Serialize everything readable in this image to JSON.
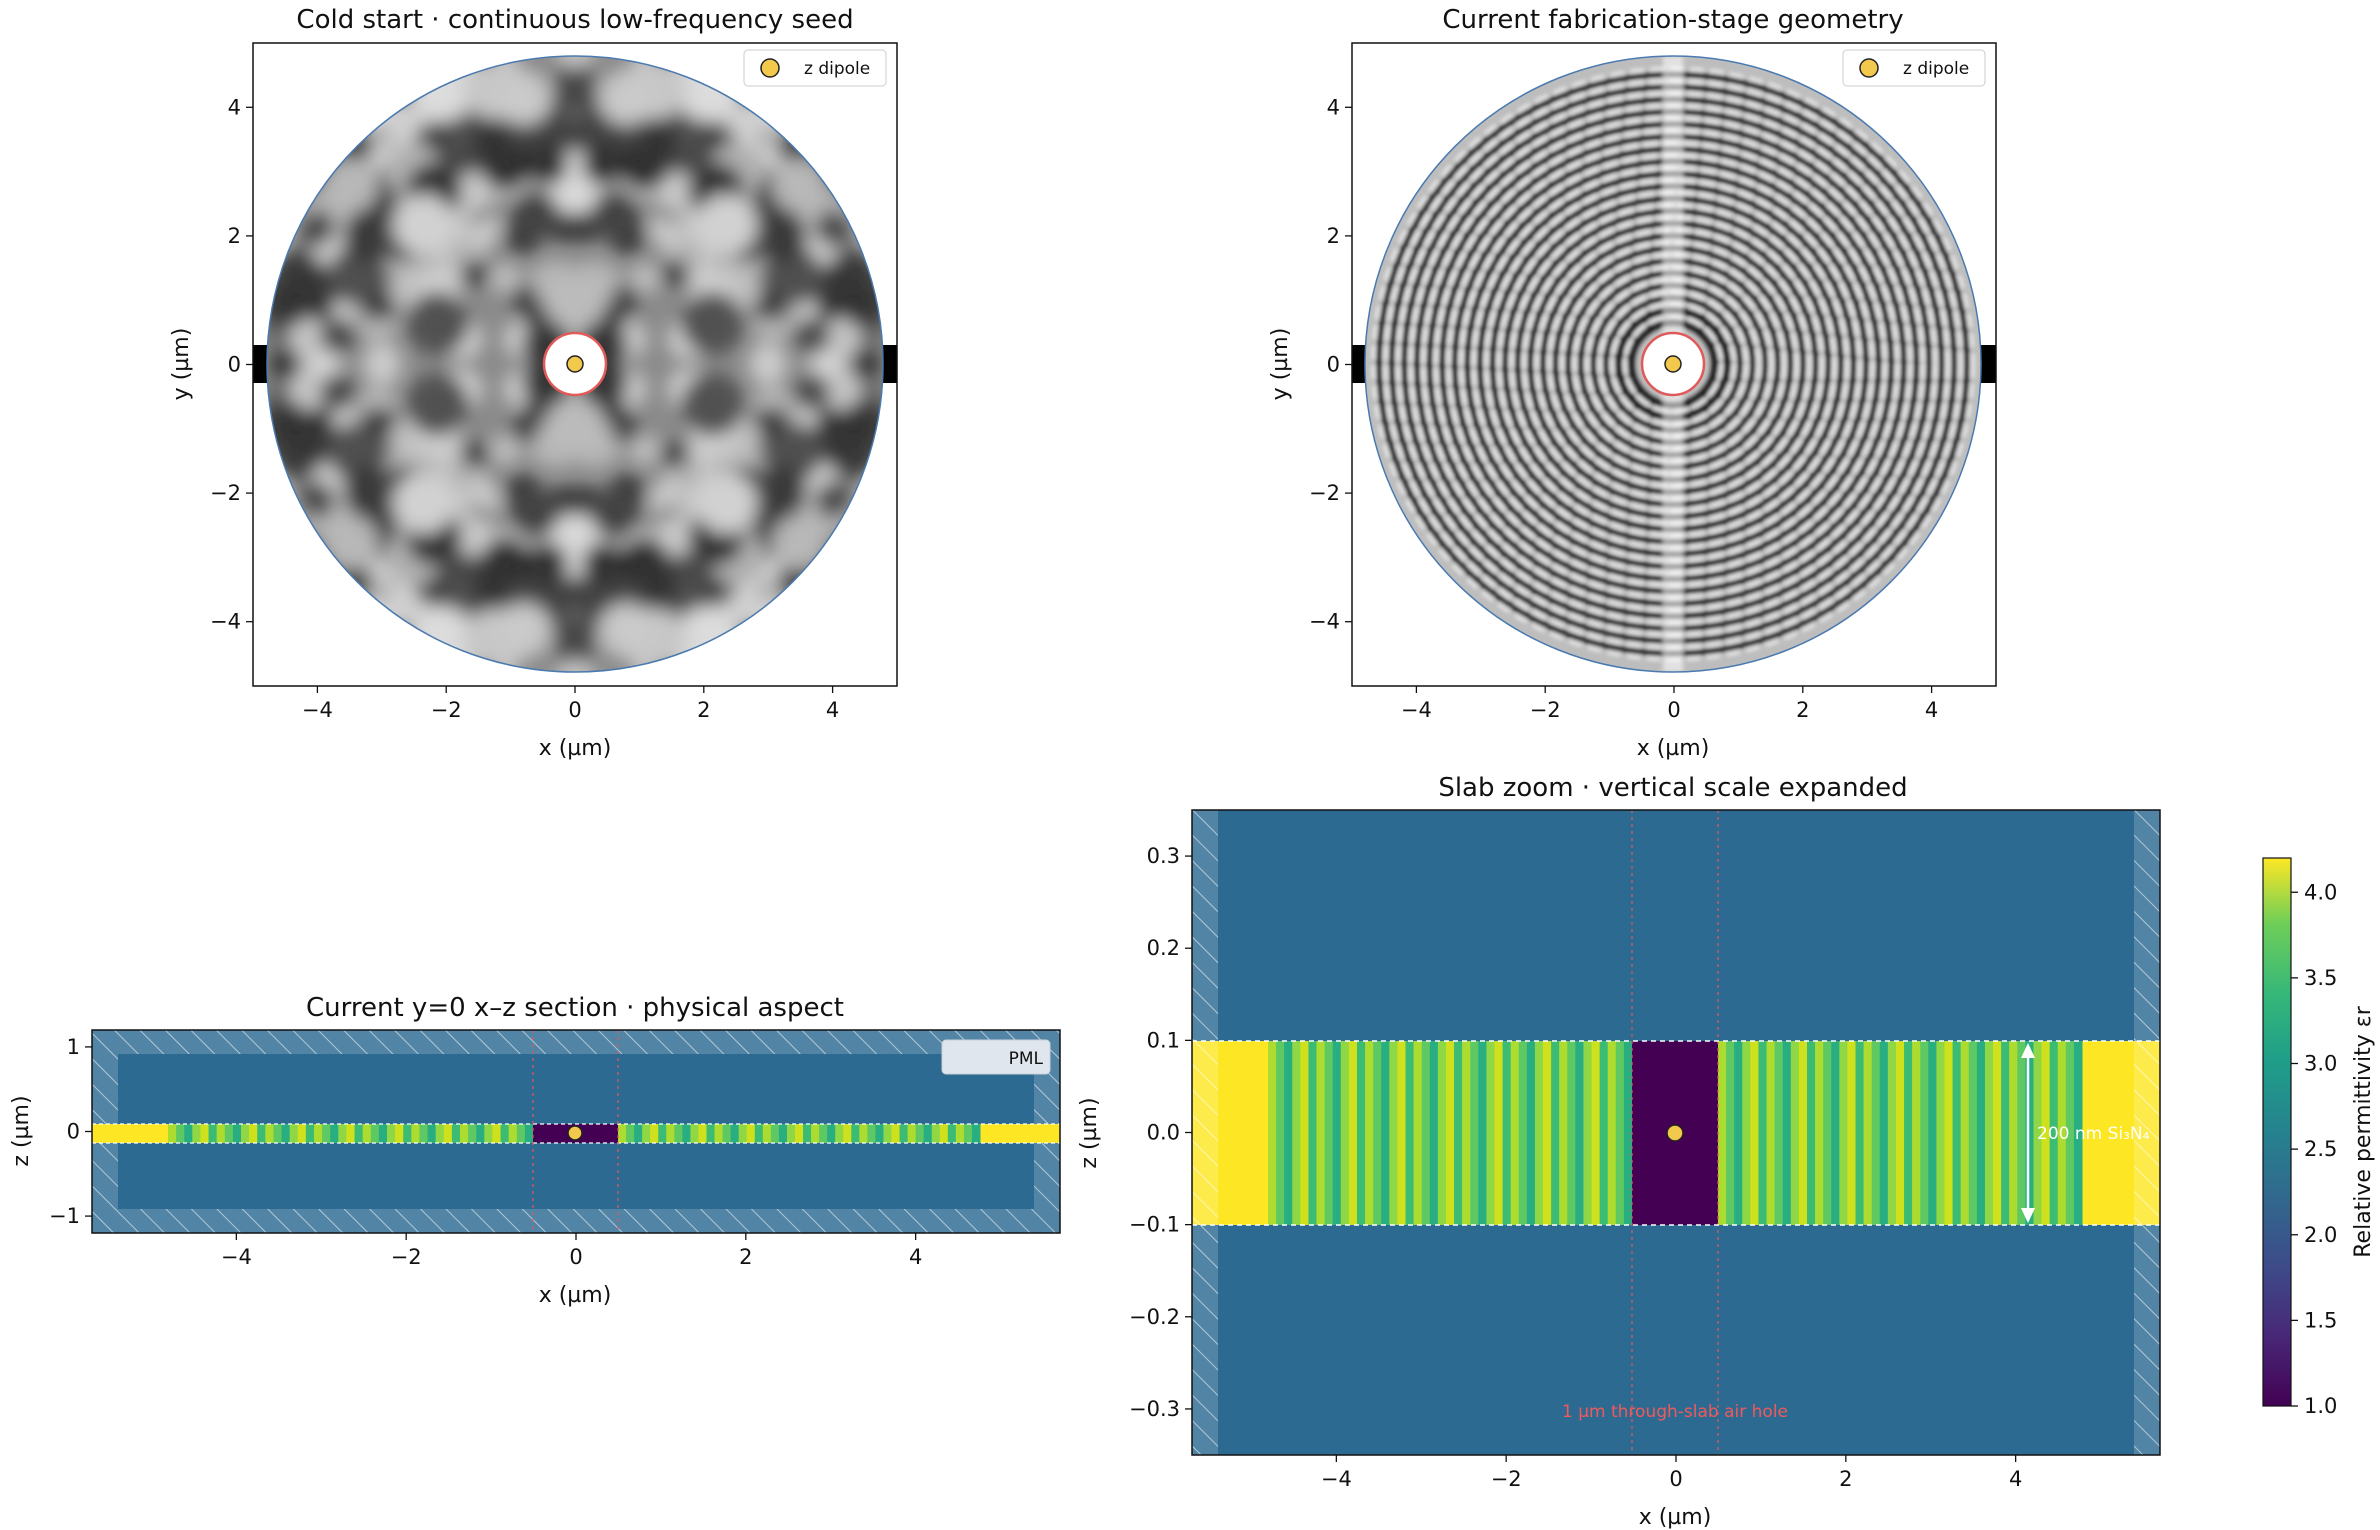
{
  "chart_data": [
    {
      "type": "heatmap",
      "title": "Cold start · continuous low-frequency seed",
      "xlabel": "x (µm)",
      "ylabel": "y (µm)",
      "xlim": [
        -5,
        5
      ],
      "ylim": [
        -5,
        5
      ],
      "xticks": [
        "−4",
        "−2",
        "0",
        "2",
        "4"
      ],
      "yticks": [
        "4",
        "2",
        "0",
        "−2",
        "−4"
      ],
      "legend": {
        "position": "top-right",
        "entries": [
          "z dipole"
        ]
      },
      "disk_radius": 4.8,
      "hole_radius": 0.5,
      "dipole": [
        0,
        0
      ],
      "colors": {
        "dipole": "#f2c94c",
        "hole_ring": "#e05a5a",
        "disk_edge": "#4a7ab0"
      }
    },
    {
      "type": "heatmap",
      "title": "Current fabrication-stage geometry",
      "xlabel": "x (µm)",
      "ylabel": "y (µm)",
      "xlim": [
        -5,
        5
      ],
      "ylim": [
        -5,
        5
      ],
      "xticks": [
        "−4",
        "−2",
        "0",
        "2",
        "4"
      ],
      "yticks": [
        "4",
        "2",
        "0",
        "−2",
        "−4"
      ],
      "legend": {
        "position": "top-right",
        "entries": [
          "z dipole"
        ]
      },
      "disk_radius": 4.8,
      "hole_radius": 0.5,
      "dipole": [
        0,
        0
      ]
    },
    {
      "type": "heatmap",
      "title": "Current y=0 x–z section · physical aspect",
      "xlabel": "x (µm)",
      "ylabel": "z (µm)",
      "xlim": [
        -5.7,
        5.7
      ],
      "ylim": [
        -1.2,
        1.2
      ],
      "xticks": [
        "−4",
        "−2",
        "0",
        "2",
        "4"
      ],
      "yticks": [
        "1",
        "0",
        "−1"
      ],
      "legend": {
        "position": "top-right",
        "entries": [
          "PML"
        ]
      },
      "slab_thickness_um": 0.2,
      "hole_width_um": 1.0
    },
    {
      "type": "heatmap",
      "title": "Slab zoom · vertical scale expanded",
      "xlabel": "x (µm)",
      "ylabel": "z (µm)",
      "xlim": [
        -5.7,
        5.7
      ],
      "ylim": [
        -0.35,
        0.35
      ],
      "xticks": [
        "−4",
        "−2",
        "0",
        "2",
        "4"
      ],
      "yticks": [
        "0.3",
        "0.2",
        "0.1",
        "0.0",
        "−0.1",
        "−0.2",
        "−0.3"
      ],
      "annotations": [
        "200 nm Si₃N₄",
        "1 µm through-slab air hole"
      ],
      "colorbar": {
        "label": "Relative permittivity εr",
        "range": [
          1.0,
          4.2
        ],
        "ticks": [
          "4.0",
          "3.5",
          "3.0",
          "2.5",
          "2.0",
          "1.5",
          "1.0"
        ],
        "colormap": "viridis"
      }
    }
  ]
}
